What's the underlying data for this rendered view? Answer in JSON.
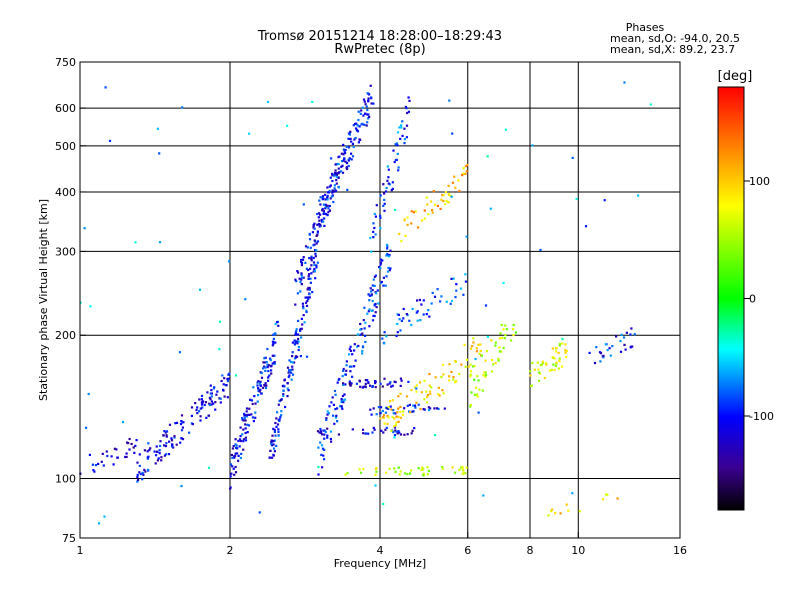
{
  "chart_data": {
    "type": "scatter",
    "title_line1": "Tromsø 20151214 18:28:00–18:29:43",
    "title_line2": "RwPretec (8p)",
    "stats": {
      "heading": "Phases",
      "line1": "mean, sd,O: -94.0, 20.5",
      "line2": "mean, sd,X:  89.2, 23.7"
    },
    "xlabel": "Frequency [MHz]",
    "ylabel": "Stationary phase Virtual Height [km]",
    "x_scale": "log",
    "y_scale": "log",
    "xlim": [
      1,
      16
    ],
    "ylim": [
      75,
      750
    ],
    "x_ticks": [
      1,
      2,
      4,
      6,
      8,
      10,
      16
    ],
    "x_tick_labels": [
      "1",
      "2",
      "4",
      "6",
      "8",
      "10",
      "16"
    ],
    "x_grid": [
      2,
      4,
      6,
      8,
      10
    ],
    "y_ticks": [
      75,
      100,
      200,
      300,
      400,
      500,
      600,
      750
    ],
    "y_tick_labels": [
      "75",
      "100",
      "200",
      "300",
      "400",
      "500",
      "600",
      "750"
    ],
    "y_grid": [
      100,
      200,
      300,
      400,
      500,
      600
    ],
    "grid": true,
    "colorbar": {
      "label": "[deg]",
      "range": [
        -180,
        180
      ],
      "ticks": [
        100,
        0,
        -100
      ],
      "tick_labels": [
        "100",
        "0",
        "-100"
      ],
      "colors": [
        "#ff0000",
        "#ff8000",
        "#ffff00",
        "#00ff00",
        "#00ffff",
        "#0000ff",
        "#4000a0",
        "#000000"
      ]
    },
    "series": [
      {
        "x": [
          1.0,
          1.3
        ],
        "y": [
          105,
          118
        ],
        "phase": -115,
        "scatter_y": 0.06,
        "count": 30
      },
      {
        "x": [
          1.3,
          2.0
        ],
        "y": [
          104,
          160
        ],
        "phase": -110,
        "scatter_y": 0.07,
        "count": 140
      },
      {
        "x": [
          2.0,
          2.5
        ],
        "y": [
          104,
          200
        ],
        "phase": -105,
        "scatter_y": 0.09,
        "count": 140
      },
      {
        "x": [
          2.4,
          3.0
        ],
        "y": [
          110,
          300
        ],
        "phase": -100,
        "scatter_y": 0.08,
        "count": 150
      },
      {
        "x": [
          2.7,
          3.4
        ],
        "y": [
          250,
          480
        ],
        "phase": -105,
        "scatter_y": 0.08,
        "count": 110
      },
      {
        "x": [
          3.0,
          3.9
        ],
        "y": [
          350,
          650
        ],
        "phase": -100,
        "scatter_y": 0.08,
        "count": 120
      },
      {
        "x": [
          3.0,
          4.2
        ],
        "y": [
          110,
          300
        ],
        "phase": -95,
        "scatter_y": 0.1,
        "count": 150
      },
      {
        "x": [
          3.8,
          4.6
        ],
        "y": [
          300,
          600
        ],
        "phase": -90,
        "scatter_y": 0.1,
        "count": 60
      },
      {
        "x": [
          3.4,
          6.0
        ],
        "y": [
          103,
          104
        ],
        "phase": 60,
        "scatter_y": 0.02,
        "count": 45
      },
      {
        "x": [
          3.3,
          4.6
        ],
        "y": [
          157,
          160
        ],
        "phase": -120,
        "scatter_y": 0.02,
        "count": 40
      },
      {
        "x": [
          3.0,
          4.8
        ],
        "y": [
          125,
          126
        ],
        "phase": -115,
        "scatter_y": 0.02,
        "count": 35
      },
      {
        "x": [
          3.8,
          5.4
        ],
        "y": [
          138,
          142
        ],
        "phase": -100,
        "scatter_y": 0.02,
        "count": 35
      },
      {
        "x": [
          4.0,
          6.5
        ],
        "y": [
          130,
          190
        ],
        "phase": 90,
        "scatter_y": 0.08,
        "count": 90
      },
      {
        "x": [
          4.3,
          6.0
        ],
        "y": [
          320,
          440
        ],
        "phase": 105,
        "scatter_y": 0.06,
        "count": 50
      },
      {
        "x": [
          4.0,
          6.0
        ],
        "y": [
          200,
          260
        ],
        "phase": -90,
        "scatter_y": 0.06,
        "count": 50
      },
      {
        "x": [
          6.0,
          7.5
        ],
        "y": [
          150,
          220
        ],
        "phase": 60,
        "scatter_y": 0.1,
        "count": 50
      },
      {
        "x": [
          8.0,
          9.5
        ],
        "y": [
          165,
          185
        ],
        "phase": 70,
        "scatter_y": 0.06,
        "count": 45
      },
      {
        "x": [
          10.5,
          13.0
        ],
        "y": [
          180,
          200
        ],
        "phase": -100,
        "scatter_y": 0.05,
        "count": 30
      },
      {
        "x": [
          8.5,
          12.0
        ],
        "y": [
          85,
          92
        ],
        "phase": 90,
        "scatter_y": 0.04,
        "count": 12
      },
      {
        "x": [
          1.0,
          14.0
        ],
        "y": [
          80,
          700
        ],
        "phase": -60,
        "scatter_y": 0.0,
        "count": 70
      }
    ]
  }
}
